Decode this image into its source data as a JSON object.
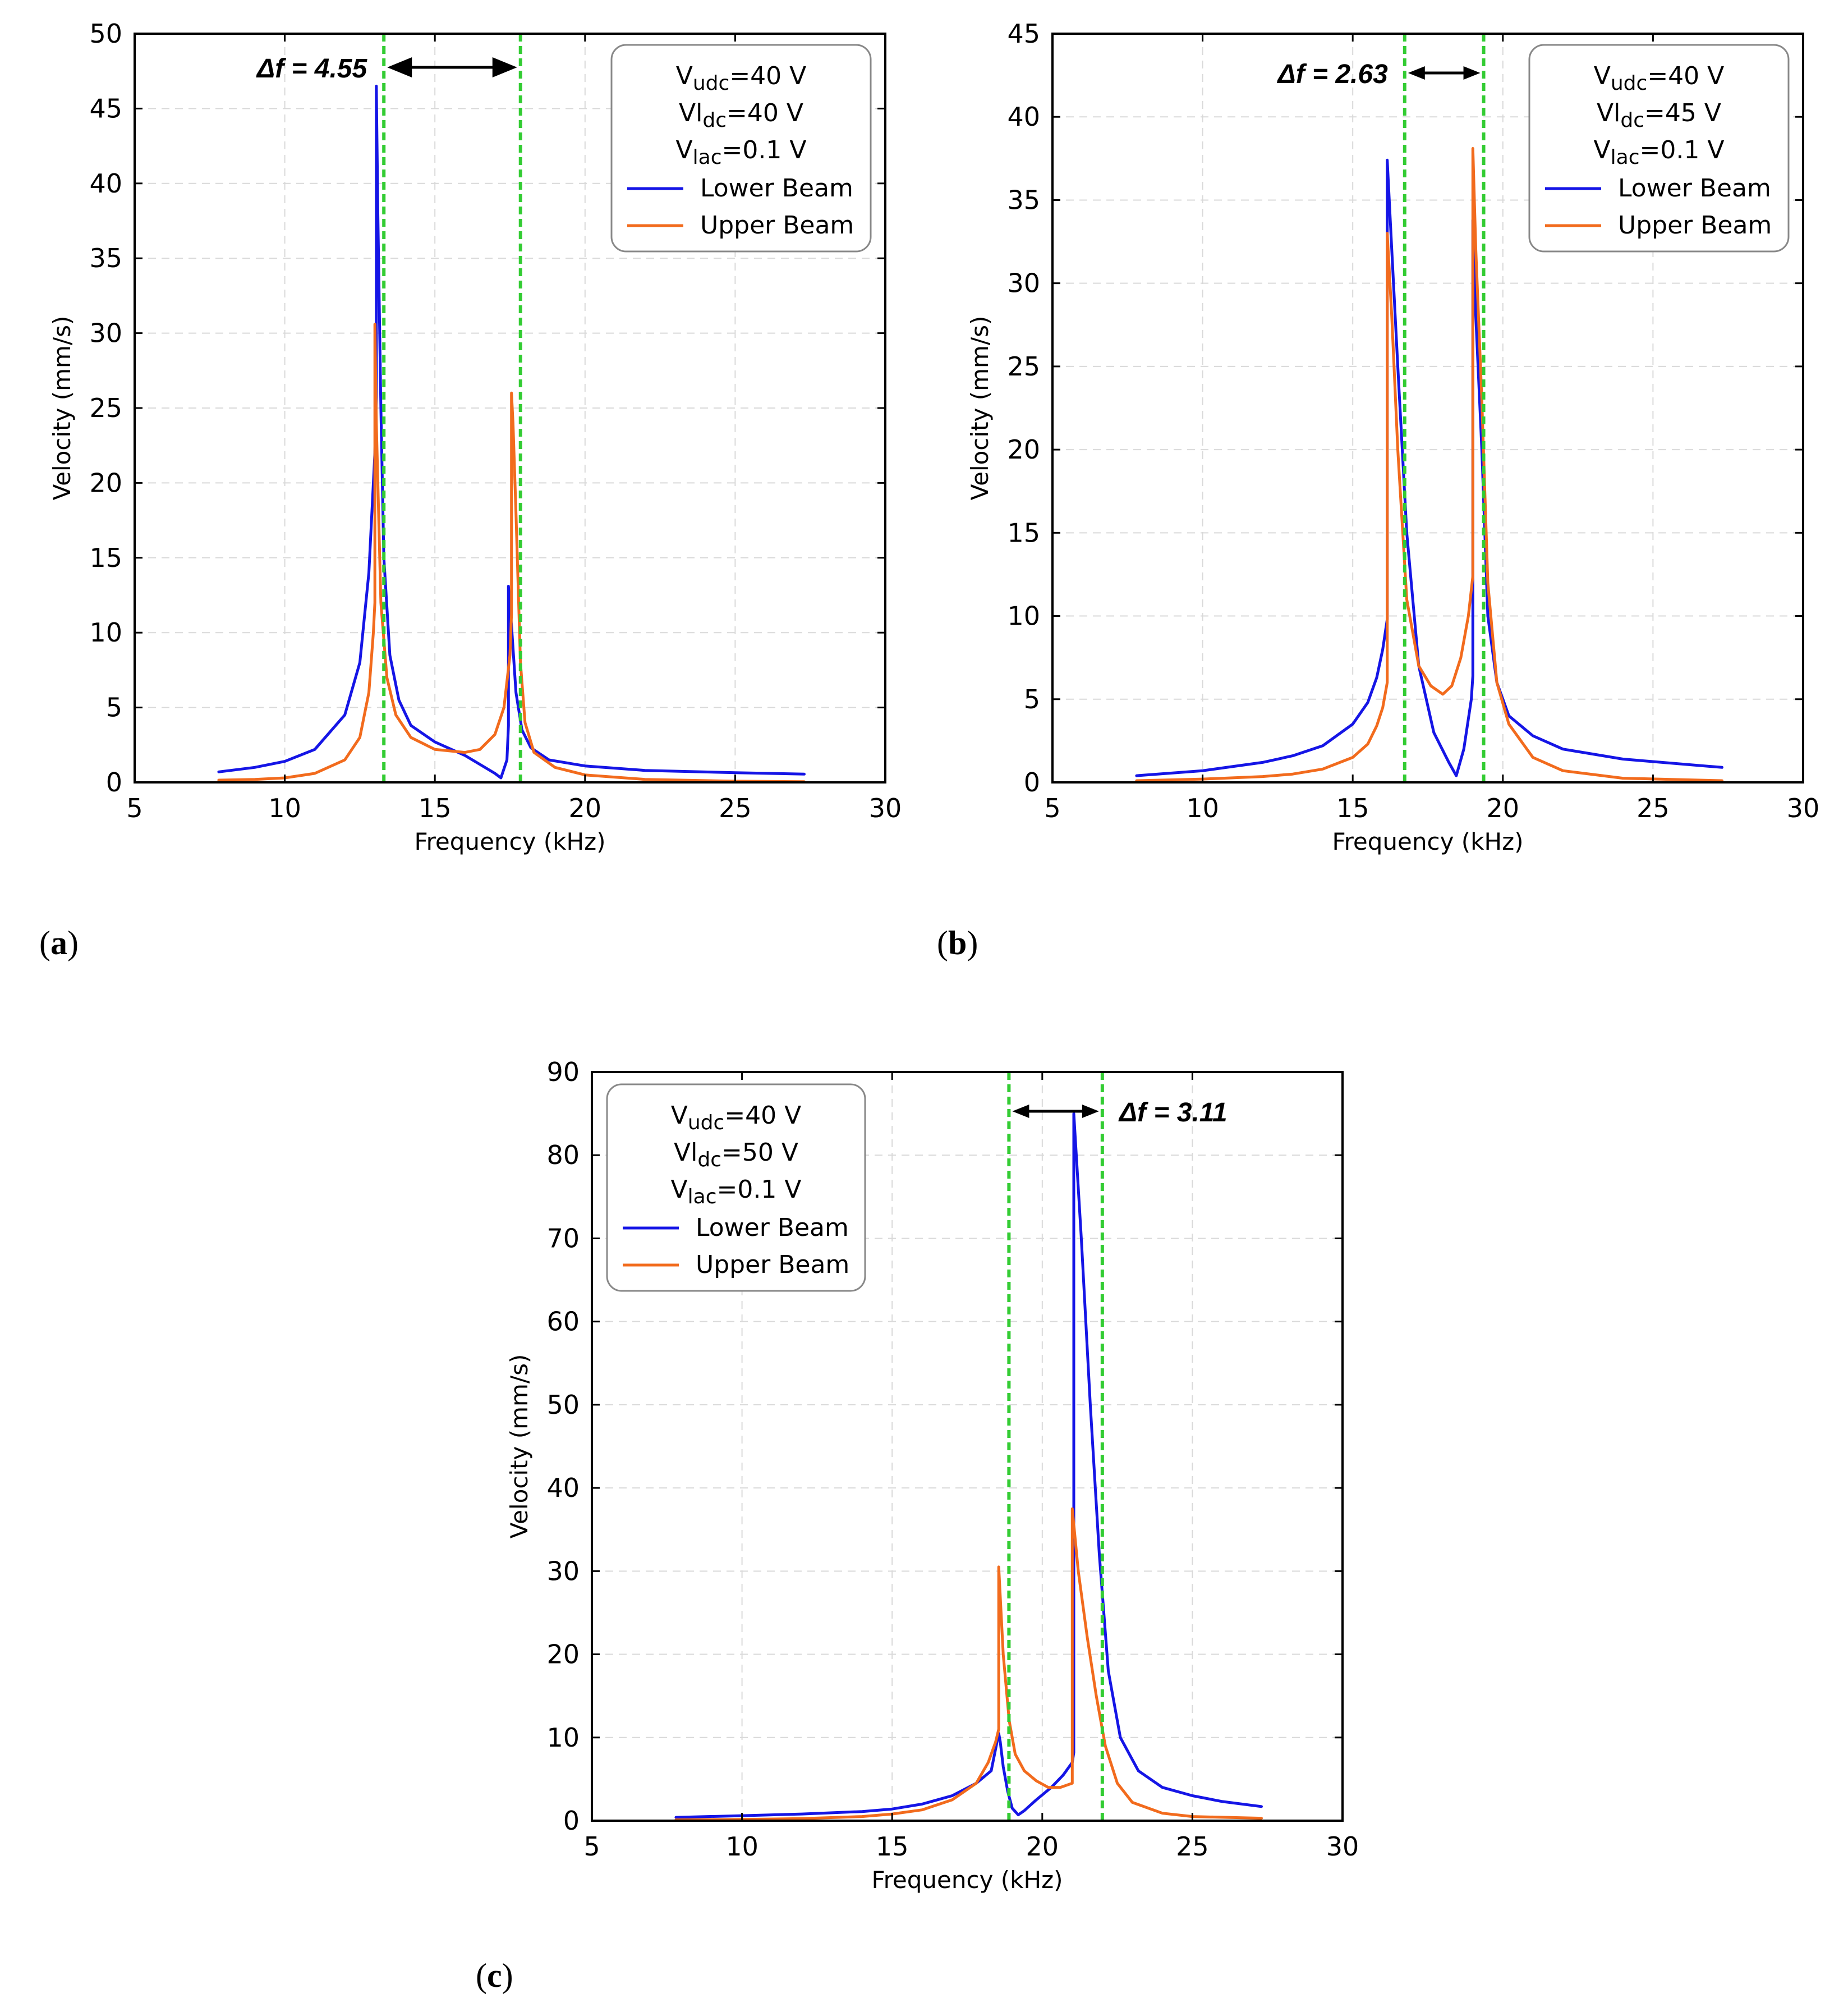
{
  "figure_title": "",
  "colors": {
    "lower_beam": "#1515e6",
    "upper_beam": "#f26b1d",
    "marker_line": "#33cc33",
    "grid": "#d9d9d9",
    "axes": "#000000"
  },
  "chart_data": [
    {
      "id": "a",
      "panel_label": "a",
      "type": "line",
      "xlabel": "Frequency (kHz)",
      "ylabel": "Velocity (mm/s)",
      "xlim": [
        5,
        30
      ],
      "ylim": [
        0,
        50
      ],
      "xticks": [
        5,
        10,
        15,
        20,
        25,
        30
      ],
      "yticks": [
        0,
        5,
        10,
        15,
        20,
        25,
        30,
        35,
        40,
        45,
        50
      ],
      "grid": true,
      "legend_position": "top-right",
      "legend": {
        "params": [
          {
            "main": "V",
            "sub": "udc",
            "rest": "=40 V"
          },
          {
            "main": "Vl",
            "sub": "dc",
            "rest": "=40 V"
          },
          {
            "main": "V",
            "sub": "lac",
            "rest": "=0.1 V"
          }
        ],
        "series_names": [
          "Lower Beam",
          "Upper Beam"
        ]
      },
      "delta_f": {
        "label": "Δf = 4.55",
        "f1": 13.3,
        "f2": 17.85,
        "label_side": "left"
      },
      "series": [
        {
          "name": "Lower Beam",
          "color": "#1515e6",
          "x": [
            7.8,
            9,
            10,
            11,
            12,
            12.5,
            12.8,
            13.0,
            13.05,
            13.05,
            13.1,
            13.2,
            13.3,
            13.5,
            13.8,
            14.2,
            15,
            16,
            16.5,
            17.0,
            17.2,
            17.4,
            17.45,
            17.45,
            17.55,
            17.7,
            17.9,
            18.2,
            18.8,
            20,
            22,
            25,
            27.3
          ],
          "y": [
            0.7,
            1.0,
            1.4,
            2.2,
            4.5,
            8,
            14,
            22,
            25.7,
            46.5,
            38,
            25,
            15,
            8.5,
            5.5,
            3.8,
            2.7,
            1.8,
            1.2,
            0.6,
            0.3,
            1.5,
            3.8,
            13.1,
            10.5,
            6.0,
            3.5,
            2.3,
            1.5,
            1.1,
            0.8,
            0.65,
            0.55
          ]
        },
        {
          "name": "Upper Beam",
          "color": "#f26b1d",
          "x": [
            7.8,
            9,
            10,
            11,
            12,
            12.5,
            12.8,
            12.95,
            13.0,
            13.0,
            13.05,
            13.2,
            13.4,
            13.7,
            14.2,
            15,
            16,
            16.5,
            17.0,
            17.3,
            17.5,
            17.55,
            17.55,
            17.6,
            17.7,
            17.85,
            18.0,
            18.3,
            19,
            20,
            22,
            25,
            27.3
          ],
          "y": [
            0.15,
            0.2,
            0.3,
            0.6,
            1.5,
            3,
            6,
            10,
            12,
            30.6,
            24,
            12,
            7,
            4.5,
            3,
            2.2,
            2.0,
            2.2,
            3.2,
            5.0,
            8.5,
            11.2,
            26,
            24,
            18,
            8,
            4,
            2,
            1,
            0.5,
            0.2,
            0.08,
            0.05
          ]
        }
      ]
    },
    {
      "id": "b",
      "panel_label": "b",
      "type": "line",
      "xlabel": "Frequency (kHz)",
      "ylabel": "Velocity (mm/s)",
      "xlim": [
        5,
        30
      ],
      "ylim": [
        0,
        45
      ],
      "xticks": [
        5,
        10,
        15,
        20,
        25,
        30
      ],
      "yticks": [
        0,
        5,
        10,
        15,
        20,
        25,
        30,
        35,
        40,
        45
      ],
      "grid": true,
      "legend_position": "top-right",
      "legend": {
        "params": [
          {
            "main": "V",
            "sub": "udc",
            "rest": "=40 V"
          },
          {
            "main": "Vl",
            "sub": "dc",
            "rest": "=45 V"
          },
          {
            "main": "V",
            "sub": "lac",
            "rest": "=0.1 V"
          }
        ],
        "series_names": [
          "Lower Beam",
          "Upper Beam"
        ]
      },
      "delta_f": {
        "label": "Δf = 2.63",
        "f1": 16.73,
        "f2": 19.36,
        "label_side": "left"
      },
      "series": [
        {
          "name": "Lower Beam",
          "color": "#1515e6",
          "x": [
            7.8,
            10,
            12,
            13,
            14,
            15,
            15.5,
            15.8,
            16.0,
            16.15,
            16.15,
            16.3,
            16.5,
            16.8,
            17.2,
            17.7,
            18.2,
            18.45,
            18.7,
            18.95,
            19.0,
            19.0,
            19.1,
            19.3,
            19.5,
            19.8,
            20.2,
            21,
            22,
            24,
            27.3
          ],
          "y": [
            0.4,
            0.7,
            1.2,
            1.6,
            2.2,
            3.5,
            4.8,
            6.3,
            8.0,
            9.8,
            37.4,
            32,
            25,
            15,
            7,
            3,
            1.2,
            0.4,
            2.0,
            5.0,
            6.4,
            33.8,
            28,
            20,
            10,
            6,
            4,
            2.8,
            2.0,
            1.4,
            0.9
          ]
        },
        {
          "name": "Upper Beam",
          "color": "#f26b1d",
          "x": [
            7.8,
            10,
            12,
            13,
            14,
            15,
            15.5,
            15.8,
            16.0,
            16.15,
            16.15,
            16.3,
            16.5,
            16.8,
            17.2,
            17.6,
            18.0,
            18.3,
            18.6,
            18.85,
            19.0,
            19.0,
            19.1,
            19.3,
            19.5,
            19.8,
            20.2,
            21,
            22,
            24,
            27.3
          ],
          "y": [
            0.1,
            0.2,
            0.35,
            0.5,
            0.8,
            1.5,
            2.3,
            3.4,
            4.5,
            6.0,
            33.0,
            28,
            20,
            11,
            7,
            5.8,
            5.3,
            5.8,
            7.5,
            10,
            12.4,
            38.1,
            32,
            23,
            12,
            6,
            3.5,
            1.5,
            0.7,
            0.25,
            0.1
          ]
        }
      ]
    },
    {
      "id": "c",
      "panel_label": "c",
      "type": "line",
      "xlabel": "Frequency (kHz)",
      "ylabel": "Velocity (mm/s)",
      "xlim": [
        5,
        30
      ],
      "ylim": [
        0,
        90
      ],
      "xticks": [
        5,
        10,
        15,
        20,
        25,
        30
      ],
      "yticks": [
        0,
        10,
        20,
        30,
        40,
        50,
        60,
        70,
        80,
        90
      ],
      "grid": true,
      "legend_position": "top-left",
      "legend": {
        "params": [
          {
            "main": "V",
            "sub": "udc",
            "rest": "=40 V"
          },
          {
            "main": "Vl",
            "sub": "dc",
            "rest": "=50 V"
          },
          {
            "main": "V",
            "sub": "lac",
            "rest": "=0.1 V"
          }
        ],
        "series_names": [
          "Lower Beam",
          "Upper Beam"
        ]
      },
      "delta_f": {
        "label": "Δf = 3.11",
        "f1": 18.89,
        "f2": 22.0,
        "label_side": "right"
      },
      "series": [
        {
          "name": "Lower Beam",
          "color": "#1515e6",
          "x": [
            7.8,
            10,
            12,
            14,
            15,
            16,
            17,
            17.8,
            18.3,
            18.55,
            18.6,
            18.7,
            18.85,
            19.0,
            19.2,
            19.4,
            19.8,
            20.3,
            20.7,
            21.0,
            21.05,
            21.05,
            21.3,
            21.6,
            21.9,
            22.2,
            22.6,
            23.2,
            24,
            25,
            26,
            27.3
          ],
          "y": [
            0.4,
            0.6,
            0.8,
            1.1,
            1.4,
            2.0,
            3.0,
            4.5,
            6.0,
            10.5,
            9.5,
            6.5,
            3.5,
            1.5,
            0.7,
            1.2,
            2.5,
            4.0,
            5.5,
            7.0,
            8.2,
            85.0,
            70,
            50,
            32,
            18,
            10,
            6,
            4,
            3,
            2.3,
            1.7
          ]
        },
        {
          "name": "Upper Beam",
          "color": "#f26b1d",
          "x": [
            7.8,
            10,
            12,
            14,
            15,
            16,
            17,
            17.8,
            18.2,
            18.45,
            18.55,
            18.55,
            18.7,
            18.9,
            19.1,
            19.4,
            19.8,
            20.2,
            20.6,
            21.0,
            21.0,
            21.2,
            21.5,
            21.8,
            22.1,
            22.5,
            23,
            24,
            25,
            27.3
          ],
          "y": [
            0.1,
            0.15,
            0.25,
            0.5,
            0.8,
            1.3,
            2.5,
            4.5,
            7.0,
            9.5,
            11.0,
            30.5,
            20,
            12,
            8,
            6,
            4.8,
            4.0,
            4.0,
            4.5,
            37.5,
            30,
            22,
            15,
            9,
            4.5,
            2.2,
            0.9,
            0.5,
            0.3
          ]
        }
      ]
    }
  ]
}
